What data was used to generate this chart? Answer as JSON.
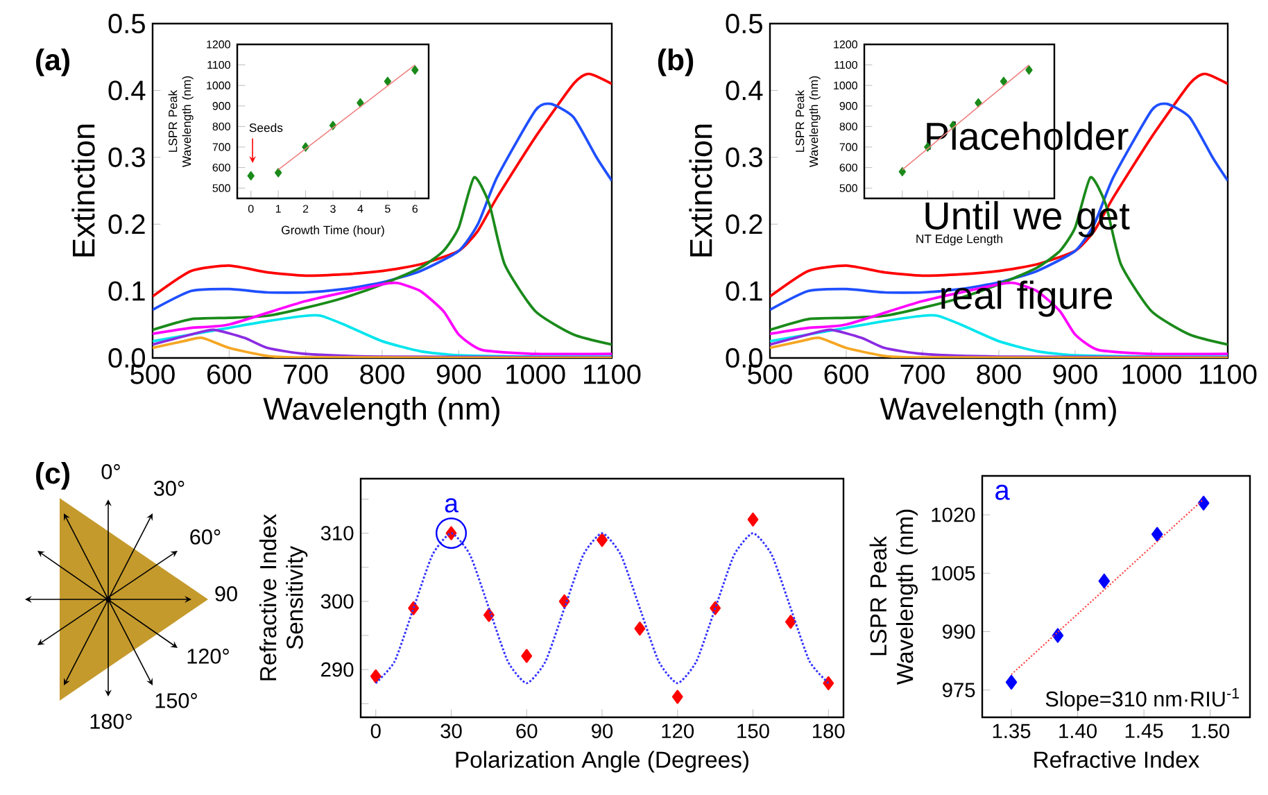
{
  "chart_data": [
    {
      "type": "line",
      "title": "(a)",
      "xlabel": "Wavelength (nm)",
      "ylabel": "Extinction",
      "xlim": [
        500,
        1100
      ],
      "ylim": [
        0,
        0.5
      ],
      "xticks": [
        500,
        600,
        700,
        800,
        900,
        1000,
        1100
      ],
      "yticks": [
        {
          "value": 0,
          "label": "0.0"
        },
        0.1,
        0.2,
        0.3,
        0.4,
        0.5
      ],
      "marker": "none",
      "series": [
        {
          "color": "#ff0000",
          "x": [
            500,
            550,
            600,
            650,
            700,
            750,
            800,
            850,
            900,
            925,
            950,
            1000,
            1050,
            1070,
            1100
          ],
          "values": [
            0.092,
            0.13,
            0.138,
            0.128,
            0.123,
            0.125,
            0.13,
            0.14,
            0.16,
            0.19,
            0.24,
            0.33,
            0.41,
            0.425,
            0.41
          ]
        },
        {
          "color": "#1f4fff",
          "x": [
            500,
            550,
            600,
            650,
            700,
            750,
            800,
            850,
            900,
            925,
            950,
            1000,
            1020,
            1050,
            1080,
            1100
          ],
          "values": [
            0.072,
            0.1,
            0.103,
            0.098,
            0.098,
            0.103,
            0.113,
            0.13,
            0.16,
            0.2,
            0.27,
            0.37,
            0.38,
            0.36,
            0.3,
            0.265
          ]
        },
        {
          "color": "#1a8a1a",
          "x": [
            500,
            550,
            600,
            650,
            700,
            750,
            800,
            850,
            880,
            900,
            920,
            940,
            960,
            1000,
            1050,
            1100
          ],
          "values": [
            0.042,
            0.058,
            0.06,
            0.063,
            0.075,
            0.09,
            0.11,
            0.135,
            0.16,
            0.195,
            0.27,
            0.23,
            0.14,
            0.07,
            0.035,
            0.02
          ]
        },
        {
          "color": "#ff00ff",
          "x": [
            500,
            550,
            600,
            700,
            800,
            820,
            850,
            880,
            900,
            930,
            1000,
            1100
          ],
          "values": [
            0.036,
            0.045,
            0.05,
            0.085,
            0.11,
            0.112,
            0.1,
            0.07,
            0.035,
            0.012,
            0.006,
            0.006
          ]
        },
        {
          "color": "#00e5ee",
          "x": [
            500,
            550,
            600,
            650,
            700,
            720,
            750,
            800,
            850,
            900,
            1000,
            1100
          ],
          "values": [
            0.025,
            0.035,
            0.045,
            0.055,
            0.063,
            0.063,
            0.05,
            0.025,
            0.01,
            0.004,
            0.002,
            0.002
          ]
        },
        {
          "color": "#8a2be2",
          "x": [
            500,
            550,
            580,
            620,
            650,
            700,
            800,
            1100
          ],
          "values": [
            0.02,
            0.035,
            0.042,
            0.03,
            0.015,
            0.006,
            0.002,
            0.001
          ]
        },
        {
          "color": "#f5a623",
          "x": [
            500,
            540,
            565,
            600,
            650,
            700,
            1100
          ],
          "values": [
            0.015,
            0.025,
            0.03,
            0.015,
            0.003,
            0.001,
            0
          ]
        }
      ]
    },
    {
      "type": "scatter",
      "xlabel": "Growth Time (hour)",
      "ylabel": "LSPR Peak Wavelength (nm)",
      "xlim": [
        -0.5,
        6.5
      ],
      "ylim": [
        450,
        1200
      ],
      "xticks": [
        0,
        1,
        2,
        3,
        4,
        5,
        6
      ],
      "yticks": [
        500,
        600,
        700,
        800,
        900,
        1000,
        1100,
        1200
      ],
      "marker": "diamond",
      "annotations": [
        "Seeds"
      ],
      "series": [
        {
          "color": "#1a8a1a",
          "x": [
            0,
            1,
            2,
            3,
            4,
            5,
            6
          ],
          "values": [
            560,
            575,
            700,
            805,
            915,
            1020,
            1075
          ]
        },
        {
          "type": "line",
          "color": "#f08080",
          "marker": "none",
          "x": [
            1,
            6
          ],
          "values": [
            590,
            1100
          ]
        }
      ]
    },
    {
      "type": "line",
      "title": "(b)",
      "xlabel": "Wavelength (nm)",
      "ylabel": "Extinction",
      "xlim": [
        500,
        1100
      ],
      "ylim": [
        0,
        0.5
      ],
      "xticks": [
        500,
        600,
        700,
        800,
        900,
        1000,
        1100
      ],
      "yticks": [
        {
          "value": 0,
          "label": "0.0"
        },
        0.1,
        0.2,
        0.3,
        0.4,
        0.5
      ],
      "marker": "none",
      "annotations": [
        "Placeholder Until we get real figure"
      ],
      "series": [
        {
          "color": "#ff0000",
          "x": [
            500,
            550,
            600,
            650,
            700,
            750,
            800,
            850,
            900,
            925,
            950,
            1000,
            1050,
            1070,
            1100
          ],
          "values": [
            0.092,
            0.13,
            0.138,
            0.128,
            0.123,
            0.125,
            0.13,
            0.14,
            0.16,
            0.19,
            0.24,
            0.33,
            0.41,
            0.425,
            0.41
          ]
        },
        {
          "color": "#1f4fff",
          "x": [
            500,
            550,
            600,
            650,
            700,
            750,
            800,
            850,
            900,
            925,
            950,
            1000,
            1020,
            1050,
            1080,
            1100
          ],
          "values": [
            0.072,
            0.1,
            0.103,
            0.098,
            0.098,
            0.103,
            0.113,
            0.13,
            0.16,
            0.2,
            0.27,
            0.37,
            0.38,
            0.36,
            0.3,
            0.265
          ]
        },
        {
          "color": "#1a8a1a",
          "x": [
            500,
            550,
            600,
            650,
            700,
            750,
            800,
            850,
            880,
            900,
            920,
            940,
            960,
            1000,
            1050,
            1100
          ],
          "values": [
            0.042,
            0.058,
            0.06,
            0.063,
            0.075,
            0.09,
            0.11,
            0.135,
            0.16,
            0.195,
            0.27,
            0.23,
            0.14,
            0.07,
            0.035,
            0.02
          ]
        },
        {
          "color": "#ff00ff",
          "x": [
            500,
            550,
            600,
            700,
            800,
            820,
            850,
            880,
            900,
            930,
            1000,
            1100
          ],
          "values": [
            0.036,
            0.045,
            0.05,
            0.085,
            0.11,
            0.112,
            0.1,
            0.07,
            0.035,
            0.012,
            0.006,
            0.006
          ]
        },
        {
          "color": "#00e5ee",
          "x": [
            500,
            550,
            600,
            650,
            700,
            720,
            750,
            800,
            850,
            900,
            1000,
            1100
          ],
          "values": [
            0.025,
            0.035,
            0.045,
            0.055,
            0.063,
            0.063,
            0.05,
            0.025,
            0.01,
            0.004,
            0.002,
            0.002
          ]
        },
        {
          "color": "#8a2be2",
          "x": [
            500,
            550,
            580,
            620,
            650,
            700,
            800,
            1100
          ],
          "values": [
            0.02,
            0.035,
            0.042,
            0.03,
            0.015,
            0.006,
            0.002,
            0.001
          ]
        },
        {
          "color": "#f5a623",
          "x": [
            500,
            540,
            565,
            600,
            650,
            700,
            1100
          ],
          "values": [
            0.015,
            0.025,
            0.03,
            0.015,
            0.003,
            0.001,
            0
          ]
        }
      ]
    },
    {
      "type": "scatter",
      "xlabel": "NT Edge Length",
      "ylabel": "LSPR Peak Wavelength (nm)",
      "categories": [
        null,
        null,
        null,
        null,
        null,
        null
      ],
      "ylim": [
        450,
        1200
      ],
      "yticks": [
        500,
        600,
        700,
        800,
        900,
        1000,
        1100,
        1200
      ],
      "tick_labels": "y",
      "marker": "diamond",
      "series": [
        {
          "color": "#1a8a1a",
          "values": [
            580,
            700,
            805,
            915,
            1020,
            1075
          ]
        },
        {
          "type": "line",
          "color": "#f08080",
          "marker": "none",
          "values": [
            590,
            692,
            794,
            896,
            998,
            1100
          ]
        }
      ]
    },
    {
      "type": "other",
      "title": "(c)",
      "annotations": [
        "0°",
        "30°",
        "60°",
        "90",
        "120°",
        "150°",
        "180°"
      ]
    },
    {
      "type": "scatter",
      "xlabel": "Polarization Angle (Degrees)",
      "ylabel": "Refractive Index Sensitivity",
      "xlim": [
        -6,
        186
      ],
      "ylim": [
        283,
        318
      ],
      "xticks": [
        0,
        30,
        60,
        90,
        120,
        150,
        180
      ],
      "yticks": [
        {
          "value": 285,
          "label": null
        },
        290,
        {
          "value": 295,
          "label": null
        },
        300,
        {
          "value": 305,
          "label": null
        },
        310,
        {
          "value": 315,
          "label": null
        }
      ],
      "marker": "diamond",
      "annotations": [
        {
          "text": "a",
          "x": 30,
          "y": 310
        }
      ],
      "series": [
        {
          "color": "#ff0000",
          "x": [
            0,
            15,
            30,
            45,
            60,
            75,
            90,
            105,
            120,
            135,
            150,
            165,
            180
          ],
          "values": [
            289,
            299,
            310,
            298,
            292,
            300,
            309,
            296,
            286,
            299,
            312,
            297,
            288
          ]
        },
        {
          "type": "line",
          "color": "#3333ff",
          "marker": "none",
          "line_style": "dotted",
          "x": [
            0,
            7.5,
            15,
            22.5,
            30,
            37.5,
            45,
            52.5,
            60,
            67.5,
            75,
            82.5,
            90,
            97.5,
            105,
            112.5,
            120,
            127.5,
            135,
            142.5,
            150,
            157.5,
            165,
            172.5,
            180
          ],
          "values": [
            288,
            291.2,
            299,
            306.8,
            310,
            306.8,
            299,
            291.2,
            288,
            291.2,
            299,
            306.8,
            310,
            306.8,
            299,
            291.2,
            288,
            291.2,
            299,
            306.8,
            310,
            306.8,
            299,
            291.2,
            288
          ]
        }
      ]
    },
    {
      "type": "scatter",
      "xlabel": "Refractive Index",
      "ylabel": "LSPR Peak Wavelength (nm)",
      "xlim": [
        1.328,
        1.53
      ],
      "ylim": [
        968,
        1030
      ],
      "xticks": [
        {
          "value": 1.35,
          "label": "1.35"
        },
        {
          "value": 1.4,
          "label": "1.40"
        },
        1.45,
        {
          "value": 1.5,
          "label": "1.50"
        }
      ],
      "yticks": [
        975,
        990,
        1005,
        1020
      ],
      "marker": "diamond",
      "annotations": [
        "a",
        "Slope=310 nm·RIU$^{-1}$"
      ],
      "series": [
        {
          "color": "#0000ff",
          "x": [
            1.35,
            1.385,
            1.42,
            1.46,
            1.495
          ],
          "values": [
            977,
            989,
            1003,
            1015,
            1023
          ]
        },
        {
          "type": "line",
          "color": "#ff4040",
          "marker": "none",
          "line_style": "dotted",
          "x": [
            1.35,
            1.495
          ],
          "values": [
            979,
            1024
          ]
        }
      ]
    }
  ]
}
